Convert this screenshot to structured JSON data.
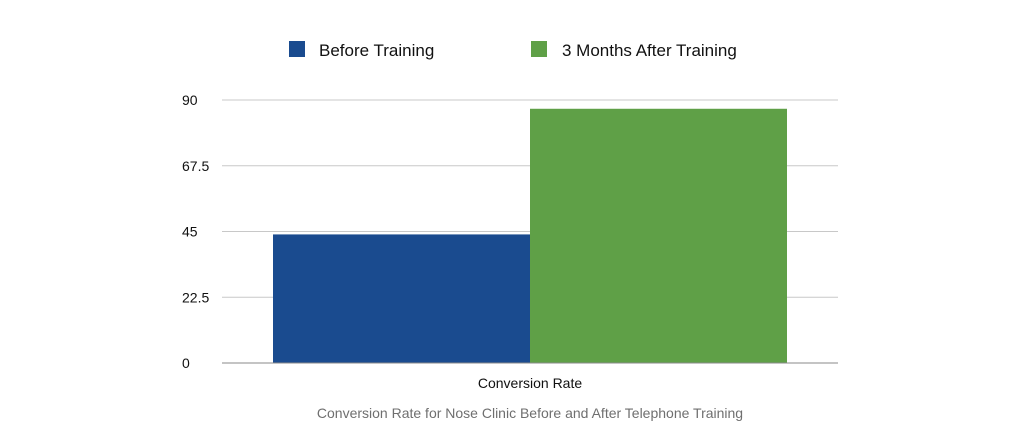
{
  "chart_data": {
    "type": "bar",
    "categories": [
      "Conversion Rate"
    ],
    "series": [
      {
        "name": "Before Training",
        "values": [
          44
        ],
        "color": "#1a4b8f"
      },
      {
        "name": "3 Months After Training",
        "values": [
          87
        ],
        "color": "#5fa047"
      }
    ],
    "ylim": [
      0,
      90
    ],
    "yticks": [
      "0",
      "22.5",
      "45",
      "67.5",
      "90"
    ],
    "ytick_values": [
      0,
      22.5,
      45,
      67.5,
      90
    ],
    "grid": true,
    "legend_position": "top",
    "caption": "Conversion Rate for Nose Clinic Before and After Telephone Training"
  }
}
